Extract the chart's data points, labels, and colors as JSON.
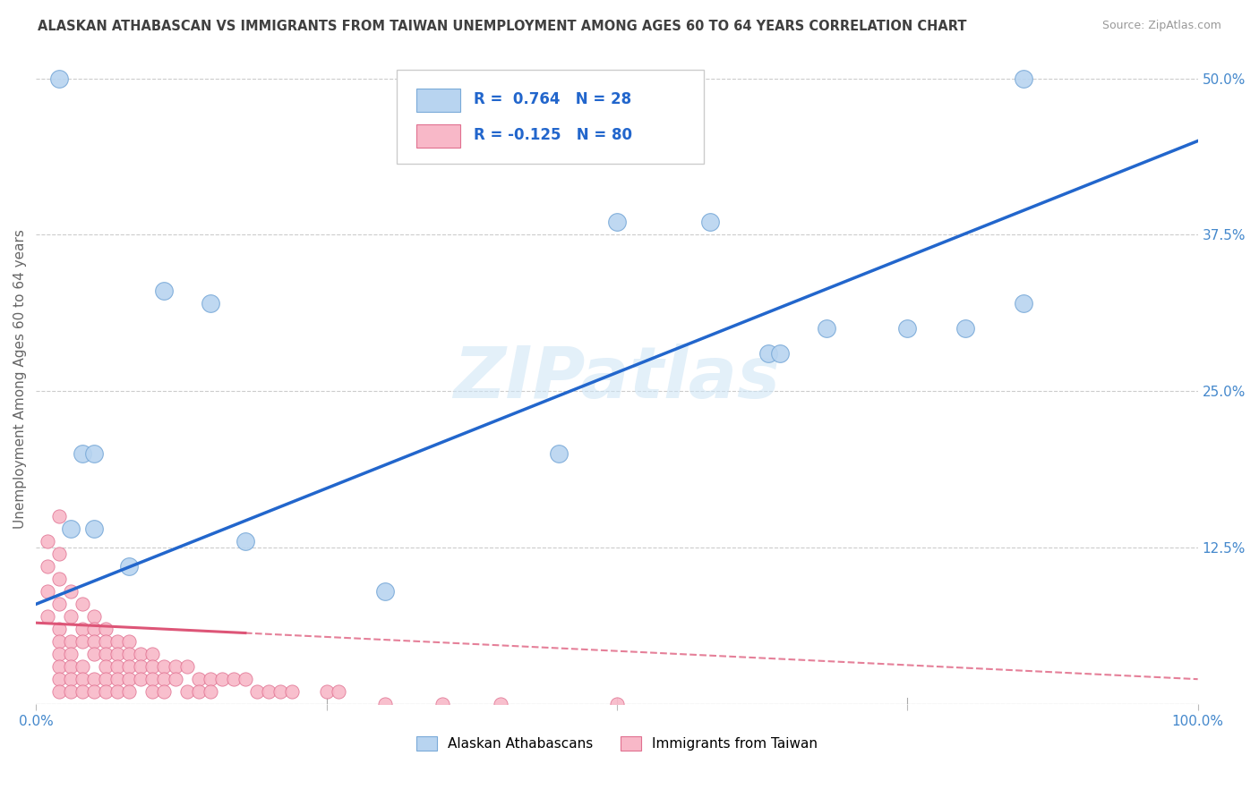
{
  "title": "ALASKAN ATHABASCAN VS IMMIGRANTS FROM TAIWAN UNEMPLOYMENT AMONG AGES 60 TO 64 YEARS CORRELATION CHART",
  "source": "Source: ZipAtlas.com",
  "ylabel": "Unemployment Among Ages 60 to 64 years",
  "xlim": [
    0,
    100
  ],
  "ylim": [
    0,
    52
  ],
  "yticks": [
    0,
    12.5,
    25,
    37.5,
    50
  ],
  "yticklabels": [
    "",
    "12.5%",
    "25.0%",
    "37.5%",
    "50.0%"
  ],
  "watermark": "ZIPatlas",
  "blue_color": "#b8d4f0",
  "blue_edge": "#7aaad8",
  "pink_color": "#f8b8c8",
  "pink_edge": "#e07090",
  "blue_line_color": "#2266cc",
  "pink_line_color": "#dd5577",
  "grid_color": "#cccccc",
  "title_color": "#404040",
  "axis_color": "#4488cc",
  "blue_scatter_x": [
    3,
    5,
    11,
    15,
    4,
    5,
    45,
    50,
    58,
    63,
    64,
    68,
    75,
    80,
    85,
    85,
    2,
    8,
    18,
    30
  ],
  "blue_scatter_y": [
    14,
    14,
    33,
    32,
    20,
    20,
    20,
    38.5,
    38.5,
    28,
    28,
    30,
    30,
    30,
    32,
    50,
    50,
    11,
    13,
    9
  ],
  "pink_scatter_x": [
    1,
    1,
    1,
    1,
    2,
    2,
    2,
    2,
    2,
    2,
    2,
    2,
    3,
    3,
    3,
    3,
    3,
    3,
    3,
    4,
    4,
    4,
    4,
    4,
    4,
    5,
    5,
    5,
    5,
    5,
    5,
    6,
    6,
    6,
    6,
    6,
    6,
    7,
    7,
    7,
    7,
    7,
    8,
    8,
    8,
    8,
    8,
    9,
    9,
    9,
    10,
    10,
    10,
    10,
    11,
    11,
    11,
    12,
    12,
    13,
    13,
    14,
    14,
    15,
    15,
    16,
    17,
    18,
    19,
    20,
    21,
    22,
    25,
    26,
    30,
    35,
    40,
    50,
    2,
    2
  ],
  "pink_scatter_y": [
    13,
    11,
    9,
    7,
    10,
    8,
    6,
    5,
    4,
    3,
    2,
    1,
    9,
    7,
    5,
    4,
    3,
    2,
    1,
    8,
    6,
    5,
    3,
    2,
    1,
    7,
    6,
    5,
    4,
    2,
    1,
    6,
    5,
    4,
    3,
    2,
    1,
    5,
    4,
    3,
    2,
    1,
    5,
    4,
    3,
    2,
    1,
    4,
    3,
    2,
    4,
    3,
    2,
    1,
    3,
    2,
    1,
    3,
    2,
    3,
    1,
    2,
    1,
    2,
    1,
    2,
    2,
    2,
    1,
    1,
    1,
    1,
    1,
    1,
    0,
    0,
    0,
    0,
    15,
    12
  ],
  "marker_size_blue": 200,
  "marker_size_pink": 120,
  "blue_line_y_intercept": 8.0,
  "blue_line_slope": 0.37,
  "pink_line_y_intercept": 6.5,
  "pink_line_slope": -0.045,
  "pink_solid_end": 18
}
